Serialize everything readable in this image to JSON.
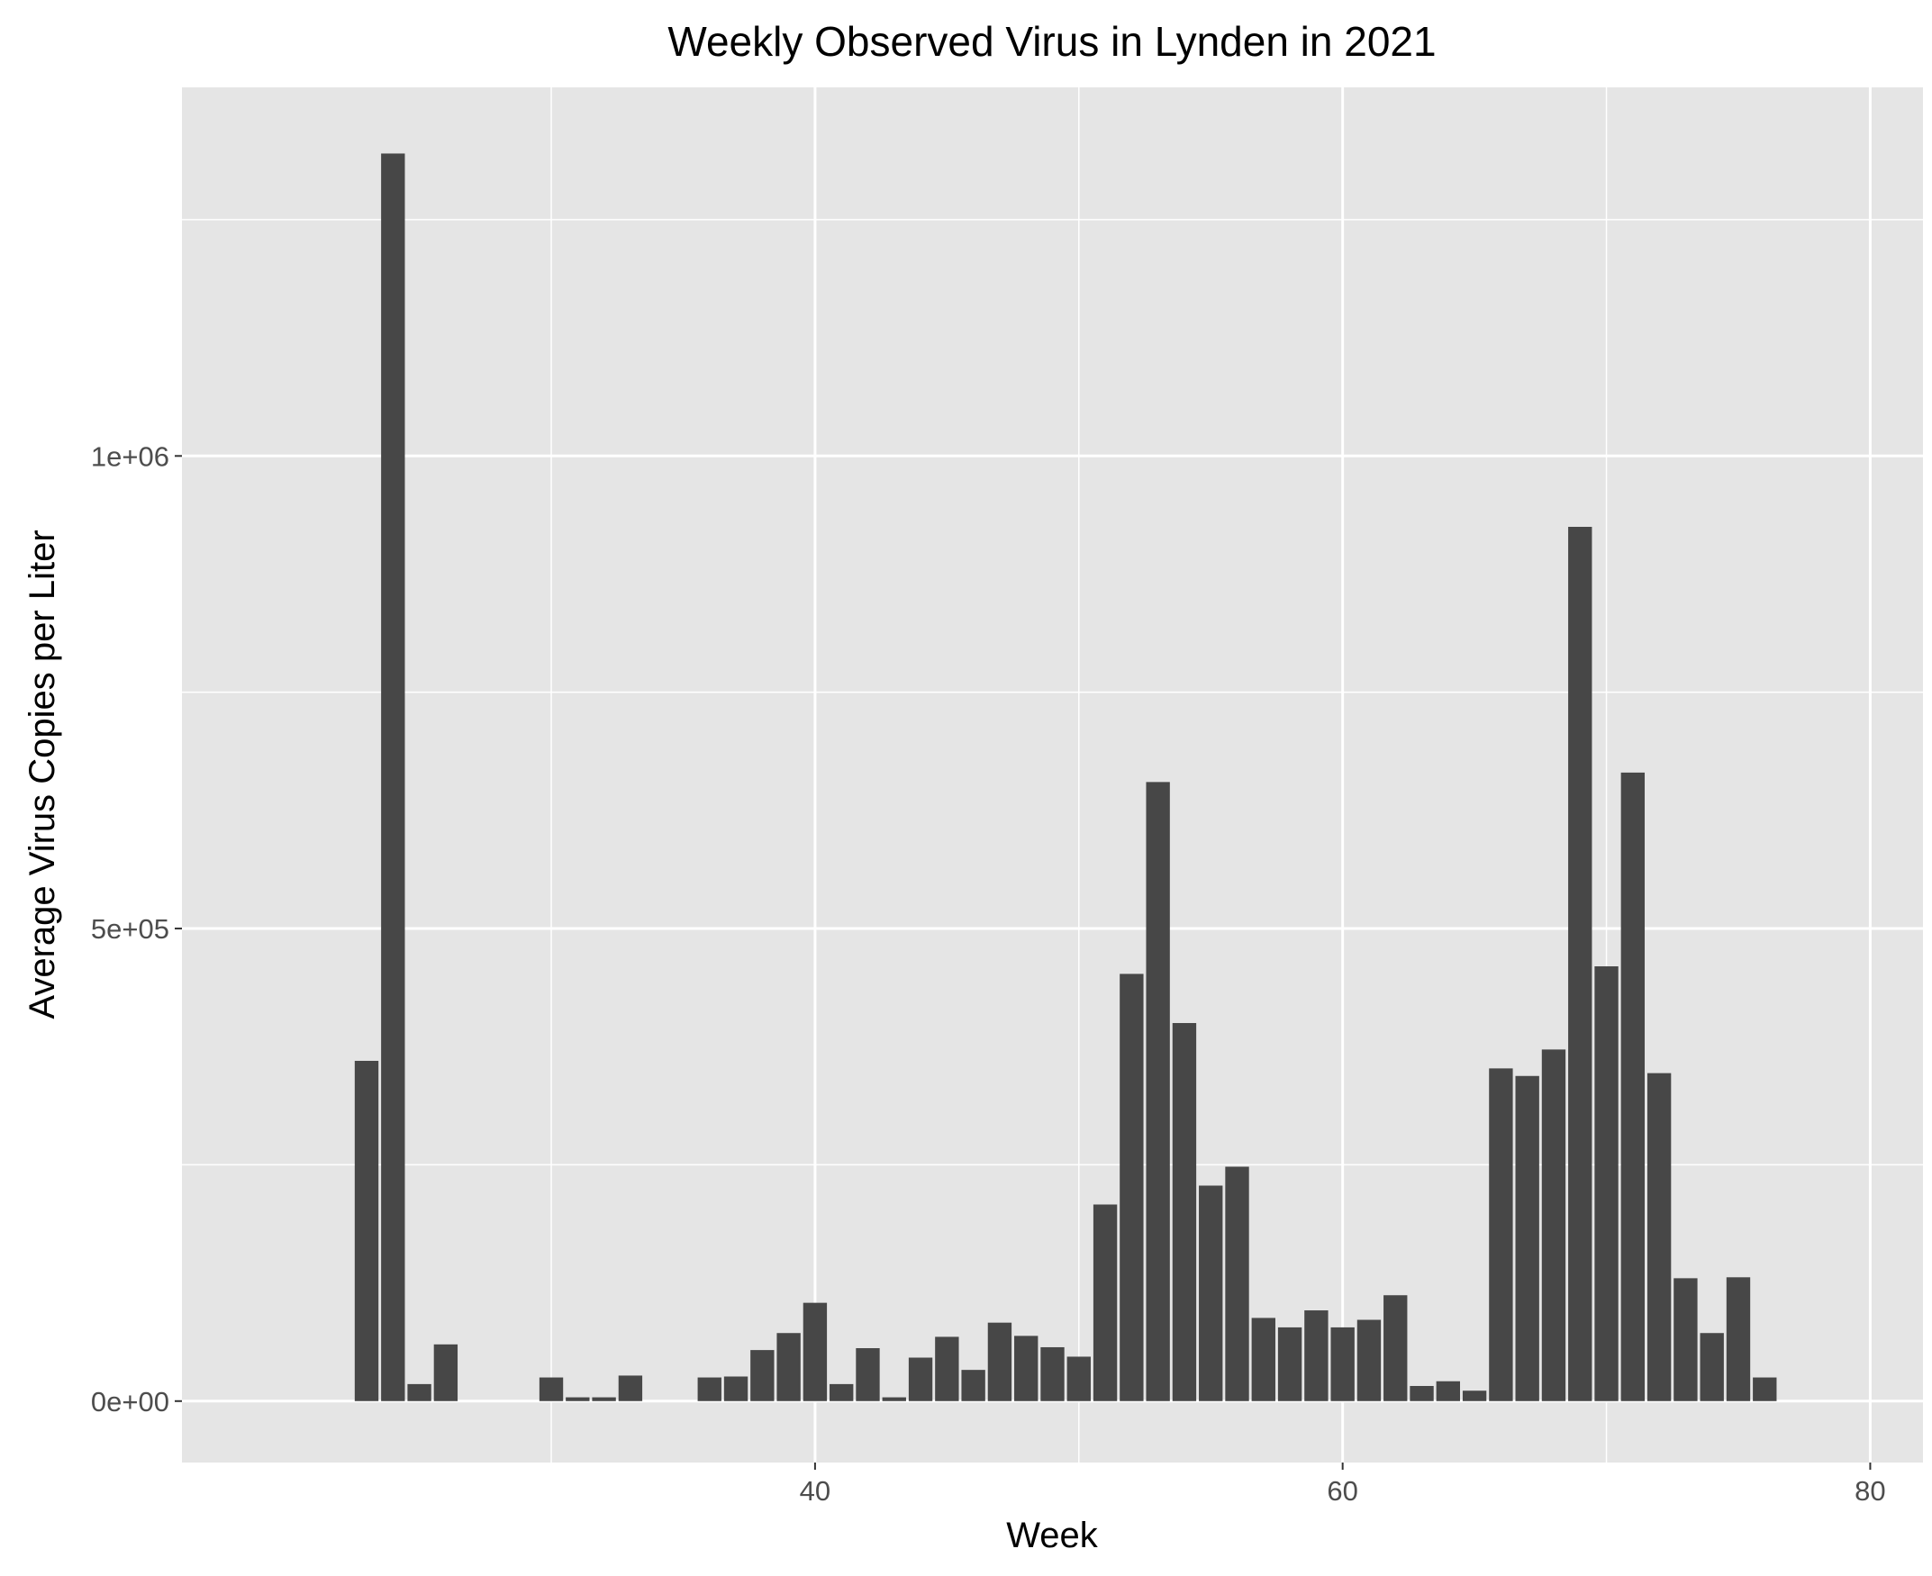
{
  "chart_data": {
    "type": "bar",
    "title": "Weekly Observed Virus in Lynden in 2021",
    "xlabel": "Week",
    "ylabel": "Average Virus Copies per Liter",
    "xlim": [
      16,
      82
    ],
    "ylim": [
      -65000,
      1390000
    ],
    "x_ticks": [
      {
        "value": 40,
        "label": "40"
      },
      {
        "value": 60,
        "label": "60"
      },
      {
        "value": 80,
        "label": "80"
      }
    ],
    "x_minor": [
      30,
      50,
      70
    ],
    "y_ticks": [
      {
        "value": 0,
        "label": "0e+00"
      },
      {
        "value": 500000,
        "label": "5e+05"
      },
      {
        "value": 1000000,
        "label": "1e+06"
      }
    ],
    "y_minor": [
      250000,
      750000,
      1250000
    ],
    "grid": true,
    "bar_color": "#474747",
    "panel_color": "#e5e5e5",
    "x": [
      23,
      24,
      25,
      26,
      30,
      31,
      32,
      33,
      36,
      37,
      38,
      39,
      40,
      41,
      42,
      43,
      44,
      45,
      46,
      47,
      48,
      49,
      50,
      51,
      52,
      53,
      54,
      55,
      56,
      57,
      58,
      59,
      60,
      61,
      62,
      63,
      64,
      65,
      66,
      67,
      68,
      69,
      70,
      71,
      72,
      73,
      74,
      75,
      76,
      77
    ],
    "values": [
      360000,
      1320000,
      18000,
      60000,
      25000,
      4000,
      4000,
      27000,
      25000,
      26000,
      54000,
      72000,
      104000,
      18000,
      56000,
      4000,
      46000,
      68000,
      33000,
      83000,
      69000,
      57000,
      47000,
      208000,
      452000,
      655000,
      400000,
      228000,
      248000,
      88000,
      78000,
      96000,
      78000,
      86000,
      112000,
      16000,
      21000,
      11000,
      352000,
      344000,
      372000,
      925000,
      460000,
      665000,
      347000,
      130000,
      72000,
      131000,
      25000,
      0
    ]
  }
}
